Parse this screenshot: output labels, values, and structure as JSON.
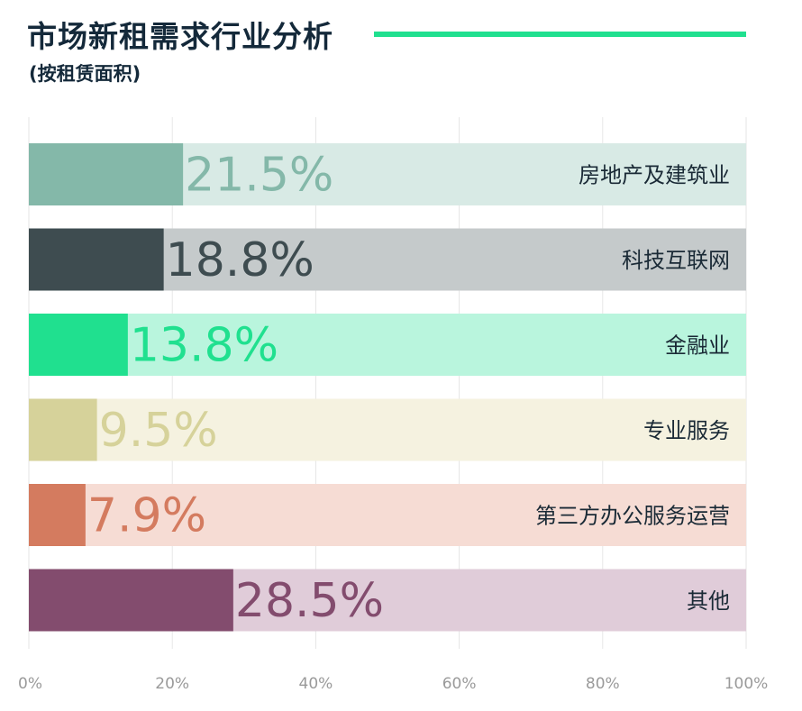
{
  "header": {
    "title": "市场新租需求行业分析",
    "subtitle": "(按租赁面积)",
    "accent_color": "#20e08f"
  },
  "chart_data": {
    "type": "bar",
    "orientation": "horizontal",
    "title": "市场新租需求行业分析",
    "subtitle": "(按租赁面积)",
    "xlim": [
      0,
      100
    ],
    "x_ticks": [
      "0%",
      "20%",
      "40%",
      "60%",
      "80%",
      "100%"
    ],
    "grid": true,
    "categories": [
      "房地产及建筑业",
      "科技互联网",
      "金融业",
      "专业服务",
      "第三方办公服务运营",
      "其他"
    ],
    "values": [
      21.5,
      18.8,
      13.8,
      9.5,
      7.9,
      28.5
    ],
    "value_labels": [
      "21.5%",
      "18.8%",
      "13.8%",
      "9.5%",
      "7.9%",
      "28.5%"
    ],
    "bar_colors": [
      "#84b8a9",
      "#3e4c50",
      "#20e08f",
      "#d6d29a",
      "#d47b5f",
      "#834c6e"
    ],
    "track_colors": [
      "#d8eae5",
      "#c5cacb",
      "#b9f5dd",
      "#f5f2e0",
      "#f6dcd4",
      "#e0ccd9"
    ],
    "label_colors": [
      "#84b8a9",
      "#3e4c50",
      "#20e08f",
      "#d6d29a",
      "#d47b5f",
      "#834c6e"
    ]
  }
}
